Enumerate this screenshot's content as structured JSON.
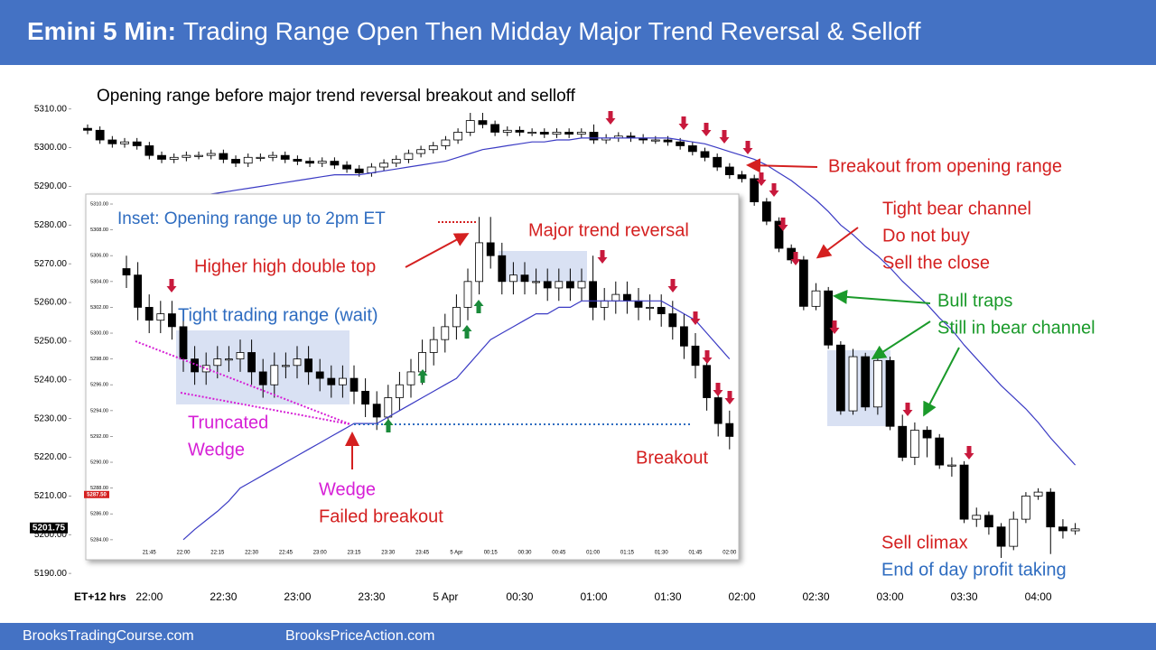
{
  "header": {
    "bold": "Emini 5 Min:",
    "title": "Trading Range Open Then Midday Major Trend Reversal & Selloff"
  },
  "footer": [
    "BrooksTradingCourse.com",
    "BrooksPriceAction.com"
  ],
  "chart_data": [
    {
      "type": "candlestick",
      "title": "Opening range before major trend reversal breakout and selloff",
      "x_label": "ET+12 hrs",
      "categories": [
        null,
        null,
        null,
        null,
        null,
        "22:00",
        null,
        null,
        null,
        null,
        null,
        "22:30",
        null,
        null,
        null,
        null,
        null,
        "23:00",
        null,
        null,
        null,
        null,
        null,
        "23:30",
        null,
        null,
        null,
        null,
        null,
        "5 Apr",
        null,
        null,
        null,
        null,
        null,
        "00:30",
        null,
        null,
        null,
        null,
        null,
        "01:00",
        null,
        null,
        null,
        null,
        null,
        "01:30",
        null,
        null,
        null,
        null,
        null,
        "02:00",
        null,
        null,
        null,
        null,
        null,
        "02:30",
        null,
        null,
        null,
        null,
        null,
        "03:00",
        null,
        null,
        null,
        null,
        null,
        "03:30",
        null,
        null,
        null,
        null,
        null,
        "04:00",
        null,
        null,
        null
      ],
      "open": [
        5305,
        5304.5,
        5302,
        5301,
        5301.5,
        5300.5,
        5298,
        5297,
        5297.5,
        5298,
        5298,
        5298.5,
        5297,
        5296,
        5297.5,
        5297.5,
        5298,
        5297,
        5296.5,
        5296,
        5296.5,
        5295.5,
        5294.5,
        5293.5,
        5295,
        5296,
        5297,
        5298.5,
        5299.5,
        5300.5,
        5302,
        5304,
        5307,
        5306,
        5304,
        5304.5,
        5304,
        5304,
        5303.5,
        5304,
        5303.5,
        5304,
        5302,
        5302.5,
        5303,
        5302.5,
        5302,
        5302,
        5301.5,
        5300.5,
        5299,
        5297.5,
        5295,
        5293,
        5292,
        5286,
        5281,
        5274,
        5271,
        5259,
        5263,
        5249,
        5232,
        5246,
        5233,
        5245,
        5228,
        5220,
        5227,
        5225,
        5218,
        5218,
        5204,
        5205,
        5202,
        5197,
        5204,
        5210,
        5211,
        5202,
        5201
      ],
      "high": [
        5306,
        5305.5,
        5303,
        5302.5,
        5302.5,
        5301.5,
        5299,
        5298.5,
        5299,
        5299,
        5299.5,
        5299.5,
        5298,
        5298.5,
        5298.5,
        5299,
        5299,
        5298,
        5297.5,
        5297.5,
        5297.5,
        5296.5,
        5295.5,
        5296,
        5297,
        5298,
        5299.5,
        5300.5,
        5301.5,
        5303,
        5305,
        5309,
        5309,
        5307,
        5305.5,
        5305.5,
        5305,
        5305,
        5305,
        5305,
        5305,
        5306,
        5303.5,
        5304,
        5304,
        5303.5,
        5303,
        5303,
        5302.5,
        5301.5,
        5300,
        5298.5,
        5296,
        5294,
        5293,
        5287,
        5282,
        5275,
        5272,
        5265,
        5264,
        5250,
        5248,
        5247,
        5246,
        5246,
        5231,
        5229,
        5228,
        5226,
        5220,
        5219,
        5207,
        5206,
        5203,
        5206,
        5211,
        5212,
        5212,
        5204,
        5203
      ],
      "low": [
        5303.5,
        5301,
        5300,
        5300,
        5299.5,
        5297,
        5296,
        5296,
        5296.5,
        5297,
        5297,
        5296,
        5295,
        5295,
        5296.5,
        5296.5,
        5296,
        5295.5,
        5295,
        5295,
        5294.5,
        5293.5,
        5292.5,
        5292.5,
        5294,
        5295,
        5296,
        5297.5,
        5298.5,
        5299.5,
        5301,
        5303,
        5305,
        5303,
        5303,
        5303,
        5303,
        5302.5,
        5302.5,
        5302.5,
        5302.5,
        5301,
        5301,
        5301.5,
        5301.5,
        5301,
        5301,
        5300.5,
        5299.5,
        5298,
        5296.5,
        5294,
        5292,
        5291,
        5285,
        5280,
        5273,
        5270,
        5258,
        5258,
        5248,
        5231,
        5231,
        5232,
        5231,
        5227,
        5219,
        5218,
        5220,
        5217,
        5215,
        5203,
        5202,
        5200,
        5194,
        5196,
        5203,
        5209,
        5195,
        5199,
        5200
      ],
      "close": [
        5304.5,
        5302,
        5301,
        5301.5,
        5300.5,
        5298,
        5297,
        5297.5,
        5298,
        5298,
        5298.5,
        5297,
        5296,
        5297.5,
        5297.5,
        5298,
        5297,
        5296.5,
        5296,
        5296.5,
        5295.5,
        5294.5,
        5293.5,
        5295,
        5296,
        5297,
        5298.5,
        5299.5,
        5300.5,
        5302,
        5304,
        5307,
        5306,
        5304,
        5304.5,
        5304,
        5304,
        5303.5,
        5304,
        5303.5,
        5304,
        5302,
        5302.5,
        5303,
        5302.5,
        5302,
        5302,
        5301.5,
        5300.5,
        5299,
        5297.5,
        5295,
        5293,
        5292,
        5286,
        5281,
        5274,
        5271,
        5259,
        5263,
        5249,
        5232,
        5246,
        5233,
        5245,
        5228,
        5220,
        5227,
        5225,
        5218,
        5218,
        5204,
        5205,
        5202,
        5197,
        5204,
        5210,
        5211,
        5202,
        5201,
        5201.5
      ],
      "ma_values": [
        null,
        null,
        null,
        null,
        null,
        null,
        null,
        null,
        null,
        5287,
        5288,
        5288.5,
        5289,
        5289.5,
        5290,
        5290.5,
        5291,
        5291.5,
        5292,
        5292.5,
        5293,
        5293,
        5293,
        5293.5,
        5294,
        5294.5,
        5295,
        5295.5,
        5296,
        5296.5,
        5297.5,
        5298.5,
        5299.5,
        5300,
        5300.5,
        5301,
        5301.5,
        5301.5,
        5302,
        5302,
        5302.5,
        5302.5,
        5302.5,
        5302.5,
        5302.5,
        5302.5,
        5302.5,
        5302.5,
        5302,
        5301.5,
        5301,
        5300,
        5299,
        5298,
        5297,
        5295.5,
        5293.5,
        5291.5,
        5289,
        5286.5,
        5283.5,
        5280,
        5277.5,
        5274.5,
        5272,
        5269,
        5265.5,
        5262.5,
        5259.5,
        5256,
        5253,
        5249,
        5245.5,
        5242,
        5238.5,
        5235.5,
        5232.5,
        5229,
        5225,
        5221.5,
        5218
      ],
      "ma_color": "#3b3bc4",
      "up_color": "#ffffff",
      "down_color": "#000000",
      "ylim": [
        5187,
        5316
      ],
      "yticks": [
        {
          "value": 5190,
          "label": "5190.00"
        },
        {
          "value": 5200,
          "label": "5200.00"
        },
        {
          "value": 5210,
          "label": "5210.00"
        },
        {
          "value": 5220,
          "label": "5220.00"
        },
        {
          "value": 5230,
          "label": "5230.00"
        },
        {
          "value": 5240,
          "label": "5240.00"
        },
        {
          "value": 5250,
          "label": "5250.00"
        },
        {
          "value": 5260,
          "label": "5260.00"
        },
        {
          "value": 5270,
          "label": "5270.00"
        },
        {
          "value": 5280,
          "label": "5280.00"
        },
        {
          "value": 5290,
          "label": "5290.00"
        },
        {
          "value": 5300,
          "label": "5300.00"
        },
        {
          "value": 5310,
          "label": "5310.00"
        }
      ],
      "price_tag": {
        "value": 5201.75,
        "label": "5201.75",
        "color": "#000000"
      },
      "annotations": [
        {
          "text": "Breakout from opening range",
          "color": "#d42020"
        },
        {
          "text": "Tight bear channel",
          "color": "#d42020"
        },
        {
          "text": "Do not buy",
          "color": "#d42020"
        },
        {
          "text": "Sell the close",
          "color": "#d42020"
        },
        {
          "text": "Bull traps",
          "color": "#1a9a2a"
        },
        {
          "text": "Still in bear channel",
          "color": "#1a9a2a"
        },
        {
          "text": "Sell climax",
          "color": "#d42020"
        },
        {
          "text": "End of day profit taking",
          "color": "#2e6cc0"
        }
      ]
    },
    {
      "type": "candlestick",
      "title": "Inset: Opening range up to 2pm ET",
      "categories": [
        null,
        null,
        "21:45",
        null,
        null,
        "22:00",
        null,
        null,
        "22:15",
        null,
        null,
        "22:30",
        null,
        null,
        "22:45",
        null,
        null,
        "23:00",
        null,
        null,
        "23:15",
        null,
        null,
        "23:30",
        null,
        null,
        "23:45",
        null,
        null,
        "5 Apr",
        null,
        null,
        "00:15",
        null,
        null,
        "00:30",
        null,
        null,
        "00:45",
        null,
        null,
        "01:00",
        null,
        null,
        "01:15",
        null,
        null,
        "01:30",
        null,
        null,
        "01:45",
        null,
        null,
        "02:00"
      ],
      "open": [
        5305,
        5304.5,
        5302,
        5301,
        5301.5,
        5300.5,
        5298,
        5297,
        5297.5,
        5298,
        5298,
        5298.5,
        5297,
        5296,
        5297.5,
        5297.5,
        5298,
        5297,
        5296.5,
        5296,
        5296.5,
        5295.5,
        5294.5,
        5293.5,
        5295,
        5296,
        5297,
        5298.5,
        5299.5,
        5300.5,
        5302,
        5304,
        5307,
        5306,
        5304,
        5304.5,
        5304,
        5304,
        5303.5,
        5304,
        5303.5,
        5304,
        5302,
        5302.5,
        5303,
        5302.5,
        5302,
        5302,
        5301.5,
        5300.5,
        5299,
        5297.5,
        5295,
        5293
      ],
      "high": [
        5306,
        5305.5,
        5303,
        5302.5,
        5302.5,
        5301.5,
        5299,
        5298.5,
        5299,
        5299,
        5299.5,
        5299.5,
        5298,
        5298.5,
        5298.5,
        5299,
        5299,
        5298,
        5297.5,
        5297.5,
        5297.5,
        5296.5,
        5295.5,
        5296,
        5297,
        5298,
        5299.5,
        5300.5,
        5301.5,
        5303,
        5305,
        5309,
        5309,
        5307,
        5305.5,
        5305.5,
        5305,
        5305,
        5305,
        5305,
        5305,
        5306,
        5303.5,
        5304,
        5304,
        5303.5,
        5303,
        5303,
        5302.5,
        5301.5,
        5300,
        5298.5,
        5296,
        5294
      ],
      "low": [
        5303.5,
        5301,
        5300,
        5300,
        5299.5,
        5297,
        5296,
        5296,
        5296.5,
        5297,
        5297,
        5296,
        5295,
        5295,
        5296.5,
        5296.5,
        5296,
        5295.5,
        5295,
        5295,
        5294.5,
        5293.5,
        5292.5,
        5292.5,
        5294,
        5295,
        5296,
        5297.5,
        5298.5,
        5299.5,
        5301,
        5303,
        5305,
        5303,
        5303,
        5303,
        5303,
        5302.5,
        5302.5,
        5302.5,
        5302.5,
        5301,
        5301,
        5301.5,
        5301.5,
        5301,
        5301,
        5300.5,
        5299.5,
        5298,
        5296.5,
        5294,
        5292,
        5291
      ],
      "close": [
        5304.5,
        5302,
        5301,
        5301.5,
        5300.5,
        5298,
        5297,
        5297.5,
        5298,
        5298,
        5298.5,
        5297,
        5296,
        5297.5,
        5297.5,
        5298,
        5297,
        5296.5,
        5296,
        5296.5,
        5295.5,
        5294.5,
        5293.5,
        5295,
        5296,
        5297,
        5298.5,
        5299.5,
        5300.5,
        5302,
        5304,
        5307,
        5306,
        5304,
        5304.5,
        5304,
        5304,
        5303.5,
        5304,
        5303.5,
        5304,
        5302,
        5302.5,
        5303,
        5302.5,
        5302,
        5302,
        5301.5,
        5300.5,
        5299,
        5297.5,
        5295,
        5293,
        5292
      ],
      "ma_values": [
        null,
        null,
        null,
        null,
        null,
        5284,
        5284.8,
        5285.5,
        5286.2,
        5287,
        5288,
        5288.5,
        5289,
        5289.5,
        5290,
        5290.5,
        5291,
        5291.5,
        5292,
        5292.5,
        5293,
        5293,
        5293,
        5293.5,
        5294,
        5294.5,
        5295,
        5295.5,
        5296,
        5296.5,
        5297.5,
        5298.5,
        5299.5,
        5300,
        5300.5,
        5301,
        5301.5,
        5301.5,
        5302,
        5302,
        5302.5,
        5302.5,
        5302.5,
        5302.5,
        5302.5,
        5302.5,
        5302.5,
        5302.5,
        5302,
        5301.5,
        5301,
        5300,
        5299,
        5298
      ],
      "ma_color": "#3b3bc4",
      "up_color": "#ffffff",
      "down_color": "#000000",
      "ylim": [
        5283.5,
        5310.7
      ],
      "yticks": [
        {
          "value": 5284,
          "label": "5284.00"
        },
        {
          "value": 5286,
          "label": "5286.00"
        },
        {
          "value": 5288,
          "label": "5288.00"
        },
        {
          "value": 5290,
          "label": "5290.00"
        },
        {
          "value": 5292,
          "label": "5292.00"
        },
        {
          "value": 5294,
          "label": "5294.00"
        },
        {
          "value": 5296,
          "label": "5296.00"
        },
        {
          "value": 5298,
          "label": "5298.00"
        },
        {
          "value": 5300,
          "label": "5300.00"
        },
        {
          "value": 5302,
          "label": "5302.00"
        },
        {
          "value": 5304,
          "label": "5304.00"
        },
        {
          "value": 5306,
          "label": "5306.00"
        },
        {
          "value": 5308,
          "label": "5308.00"
        },
        {
          "value": 5310,
          "label": "5310.00"
        }
      ],
      "price_tag": {
        "value": 5287.5,
        "label": "5287.50",
        "color": "#d42020"
      },
      "annotations": [
        {
          "text": "Higher high double top",
          "color": "#d42020"
        },
        {
          "text": "Major trend reversal",
          "color": "#d42020"
        },
        {
          "text": "Tight trading range (wait)",
          "color": "#2e6cc0"
        },
        {
          "text": "Truncated",
          "color": "#d61fd6"
        },
        {
          "text": "Wedge",
          "color": "#d61fd6"
        },
        {
          "text": "Wedge",
          "color": "#d61fd6"
        },
        {
          "text": "Failed breakout",
          "color": "#d42020"
        },
        {
          "text": "Breakout",
          "color": "#d42020"
        }
      ]
    }
  ]
}
